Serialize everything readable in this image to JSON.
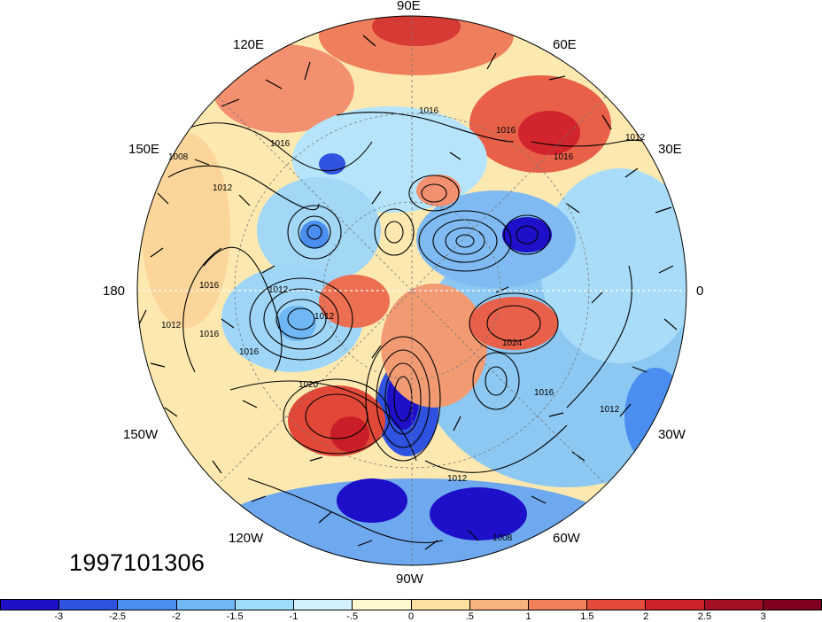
{
  "date_stamp": "1997101306",
  "lon_labels": [
    "90E",
    "120E",
    "60E",
    "150E",
    "30E",
    "180",
    "0",
    "150W",
    "30W",
    "120W",
    "60W",
    "90W"
  ],
  "contour_labels": [
    "1016",
    "1012",
    "1016",
    "1012",
    "1008",
    "1016",
    "1016",
    "1012",
    "1012",
    "1016",
    "1012",
    "1020",
    "1016",
    "1016",
    "1024",
    "1012",
    "1012",
    "1008",
    "1016"
  ],
  "colorbar": {
    "ticks": [
      "-3",
      "-2.5",
      "-2",
      "-1.5",
      "-1",
      "-.5",
      "0",
      ".5",
      "1",
      "1.5",
      "2",
      "2.5",
      "3"
    ],
    "colors": [
      "#1d10c8",
      "#2f52e0",
      "#4a8ff0",
      "#6fb7f5",
      "#9fdcfa",
      "#d4f2fc",
      "#fff8cf",
      "#fbe0a0",
      "#f8b27e",
      "#f0805a",
      "#e54b3c",
      "#d0222a",
      "#a50f26",
      "#800020"
    ]
  }
}
